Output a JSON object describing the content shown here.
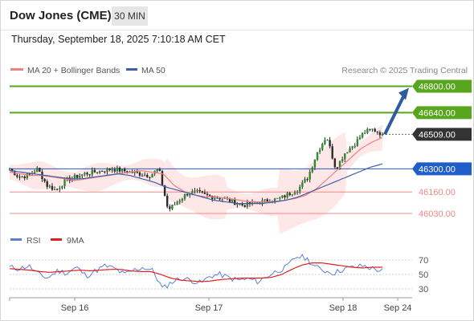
{
  "header": {
    "title": "Dow Jones (CME)",
    "timeframe": "30 MIN",
    "datetime": "Thursday, September 18, 2025 7:10:18 AM CET"
  },
  "legend": {
    "ma20": "MA 20 + Bollinger Bands",
    "ma50": "MA 50",
    "credit": "Research © 2025 Trading Central"
  },
  "rsi_legend": {
    "rsi": "RSI",
    "ma9": "9MA"
  },
  "colors": {
    "ma20": "#f08080",
    "ma50": "#3f5fa8",
    "band_fill": "#fde3e3",
    "candle": "#2a2a2a",
    "up_candle": "#2f8a2f",
    "resistance": "#58a61e",
    "support": "#f08888",
    "pivot": "#1f5ec9",
    "last": "#333333",
    "arrow": "#2e5aa0",
    "rsi": "#5b7fd6",
    "rsi_ma": "#e02020"
  },
  "chart_data": [
    {
      "type": "line",
      "name": "price",
      "x_ticks": [
        "Sep 16",
        "Sep 17",
        "Sep 18",
        "Sep 24"
      ],
      "ylim": [
        45960,
        46870
      ],
      "levels": [
        {
          "value": 46800,
          "label": "46800.00",
          "kind": "resistance"
        },
        {
          "value": 46640,
          "label": "46640.00",
          "kind": "resistance"
        },
        {
          "value": 46509,
          "label": "46509.00",
          "kind": "last"
        },
        {
          "value": 46300,
          "label": "46300.00",
          "kind": "pivot"
        },
        {
          "value": 46160,
          "label": "46160.00",
          "kind": "support"
        },
        {
          "value": 46030,
          "label": "46030.00",
          "kind": "support"
        }
      ],
      "forecast_arrow": {
        "from": 46509,
        "to": 46800
      },
      "price_key": [
        46300,
        46250,
        46260,
        46300,
        46200,
        46170,
        46230,
        46250,
        46270,
        46280,
        46290,
        46300,
        46290,
        46280,
        46270,
        46260,
        46300,
        46050,
        46100,
        46150,
        46160,
        46140,
        46130,
        46120,
        46100,
        46080,
        46090,
        46100,
        46110,
        46120,
        46150,
        46180,
        46250,
        46400,
        46500,
        46300,
        46400,
        46450,
        46520,
        46540,
        46509
      ],
      "ma20_key": [
        46280,
        46270,
        46260,
        46260,
        46250,
        46240,
        46230,
        46240,
        46250,
        46260,
        46270,
        46280,
        46290,
        46280,
        46270,
        46200,
        46160,
        46140,
        46130,
        46130,
        46120,
        46110,
        46100,
        46100,
        46100,
        46110,
        46120,
        46140,
        46180,
        46240,
        46300,
        46360,
        46420,
        46460,
        46490
      ],
      "ma50_key": [
        46290,
        46280,
        46270,
        46260,
        46250,
        46240,
        46240,
        46250,
        46260,
        46270,
        46260,
        46240,
        46220,
        46190,
        46170,
        46150,
        46130,
        46110,
        46100,
        46090,
        46090,
        46090,
        46100,
        46110,
        46130,
        46160,
        46190,
        46220,
        46250,
        46280,
        46310,
        46330
      ]
    },
    {
      "type": "line",
      "name": "rsi",
      "yticks": [
        70,
        50,
        30
      ],
      "ylim": [
        20,
        80
      ],
      "rsi_key": [
        60,
        58,
        62,
        50,
        45,
        55,
        52,
        60,
        48,
        55,
        62,
        58,
        50,
        56,
        60,
        55,
        30,
        40,
        45,
        42,
        38,
        48,
        50,
        45,
        42,
        44,
        40,
        48,
        55,
        60,
        75,
        73,
        60,
        55,
        52,
        58,
        60,
        62,
        58,
        55
      ],
      "ma9_key": [
        58,
        57,
        56,
        54,
        53,
        54,
        55,
        56,
        55,
        56,
        57,
        57,
        55,
        54,
        54,
        50,
        45,
        42,
        41,
        40,
        41,
        43,
        44,
        45,
        45,
        45,
        46,
        50,
        57,
        63,
        66,
        66,
        64,
        62,
        60,
        59,
        60,
        60
      ]
    }
  ]
}
